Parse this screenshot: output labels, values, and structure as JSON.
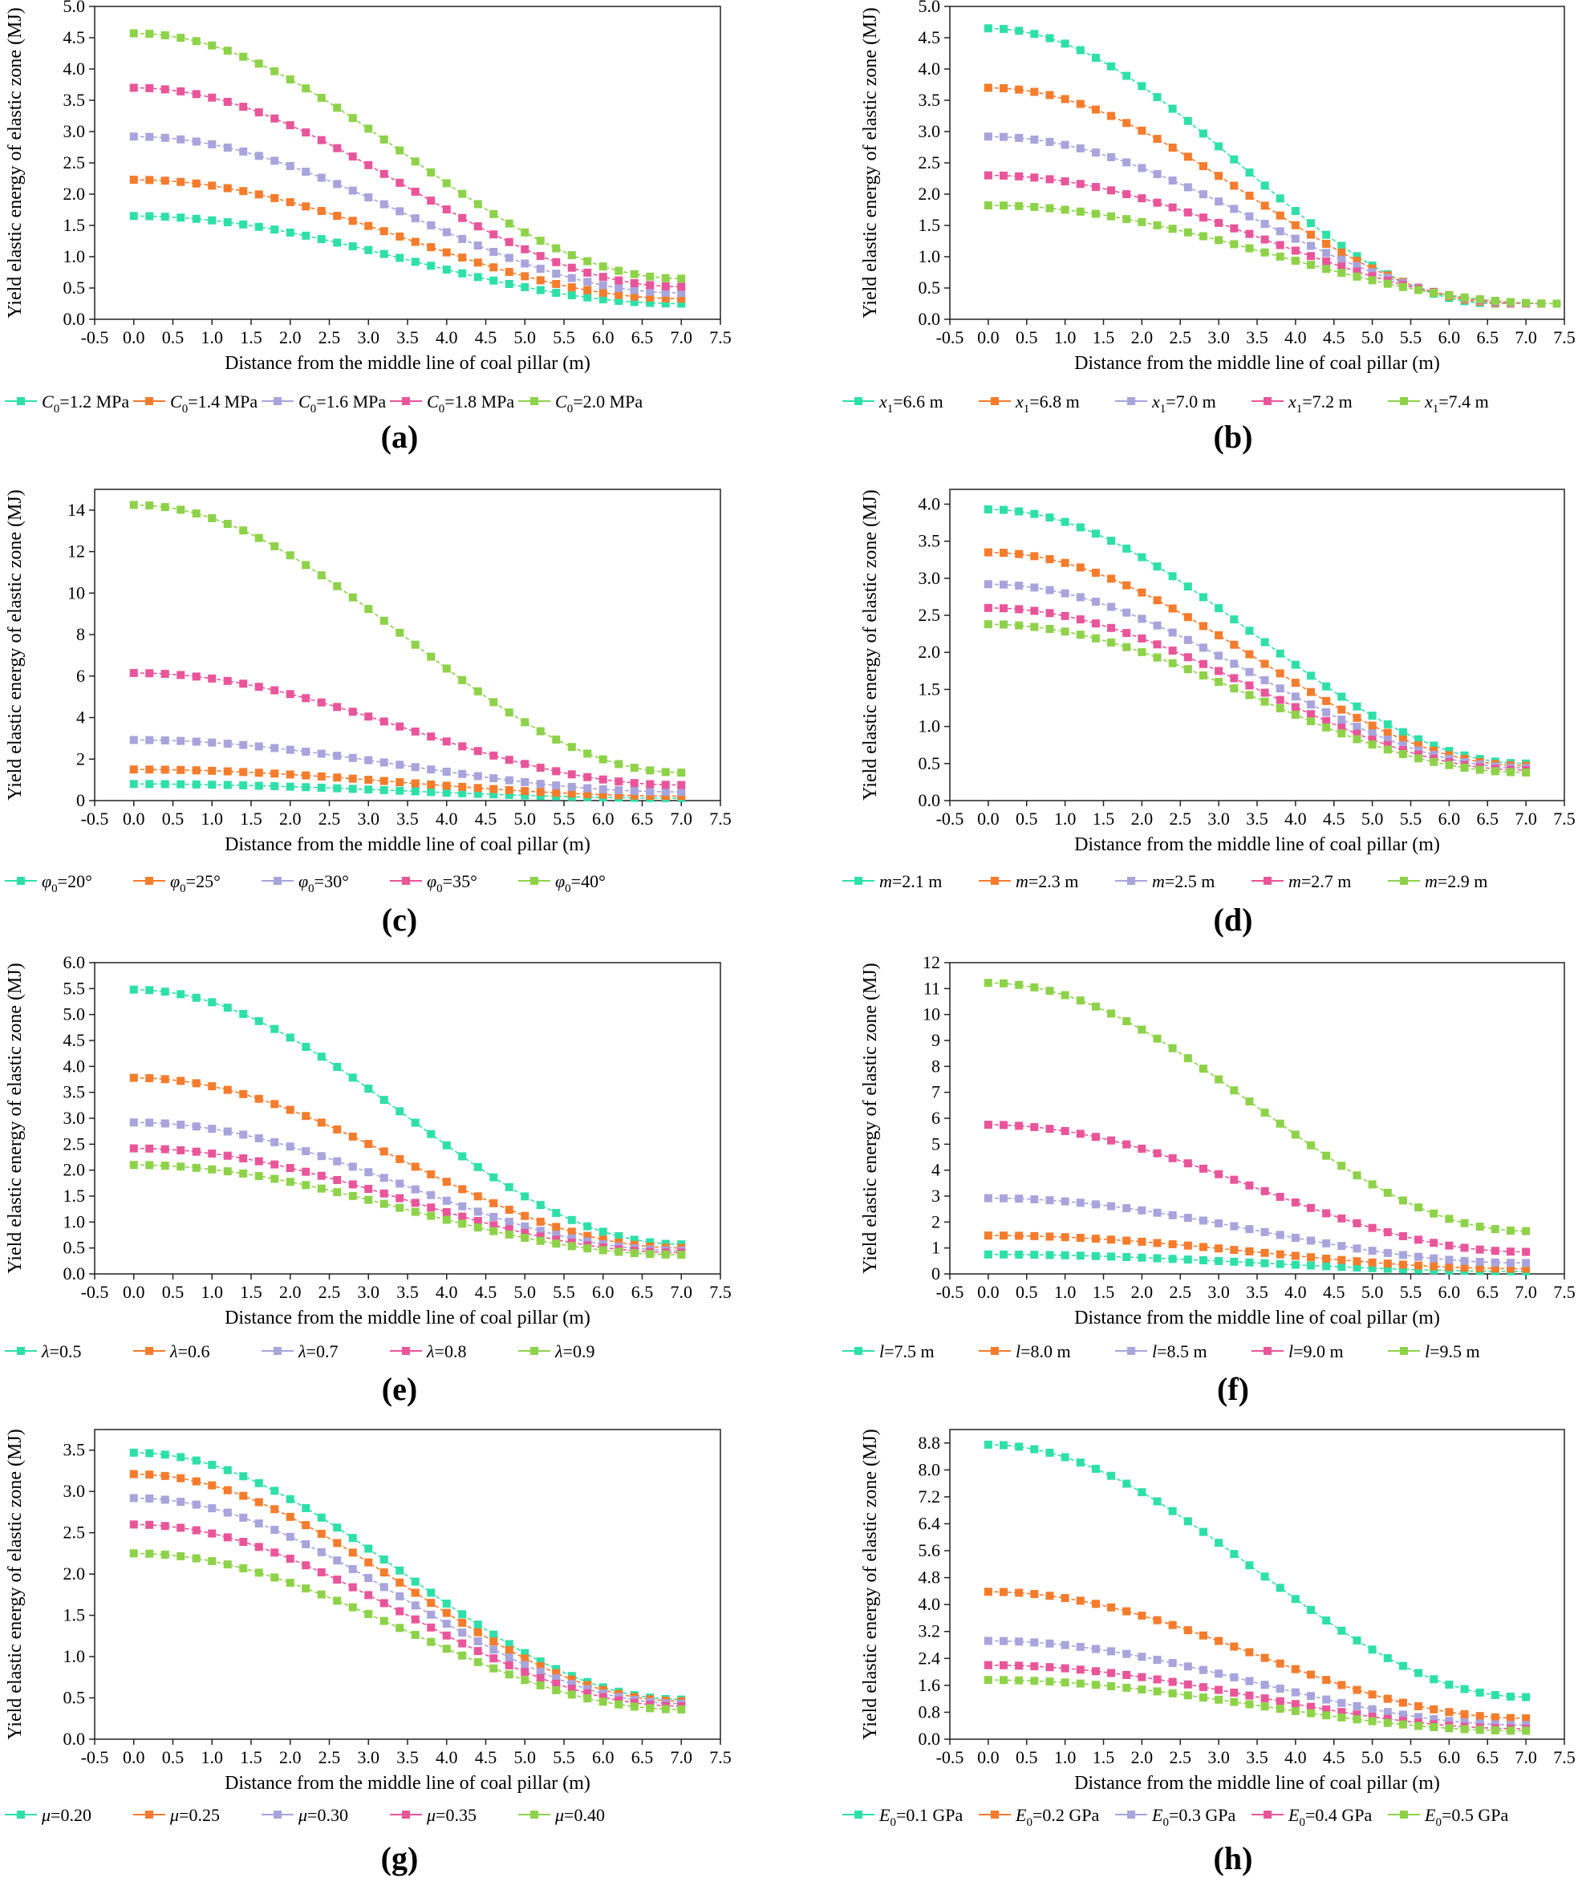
{
  "figure": {
    "colors": [
      "#2ee0a8",
      "#f47c2c",
      "#a8a4dc",
      "#e9559a",
      "#8ed24a"
    ],
    "xlabel": "Distance from the middle line of coal pillar (m)",
    "ylabel": "Yield elastic energy of elastic zone (MJ)",
    "x_ticks": [
      "-0.5",
      "0.0",
      "0.5",
      "1.0",
      "1.5",
      "2.0",
      "2.5",
      "3.0",
      "3.5",
      "4.0",
      "4.5",
      "5.0",
      "5.5",
      "6.0",
      "6.5",
      "7.0",
      "7.5"
    ]
  },
  "chart_data": [
    {
      "panel": "(a)",
      "type": "line",
      "xlim": [
        -0.5,
        7.5
      ],
      "ylim": [
        0,
        5
      ],
      "x_end": 7.0,
      "y_ticks": [
        "0.0",
        "0.5",
        "1.0",
        "1.5",
        "2.0",
        "2.5",
        "3.0",
        "3.5",
        "4.0",
        "4.5",
        "5.0"
      ],
      "xlabel": "Distance from the middle line of coal pillar (m)",
      "ylabel": "Yield elastic energy of elastic zone (MJ)",
      "series": [
        {
          "sym": "C",
          "sub": "0",
          "rest": "=1.2 MPa",
          "y0": 1.65,
          "y_end": 0.25
        },
        {
          "sym": "C",
          "sub": "0",
          "rest": "=1.4 MPa",
          "y0": 2.23,
          "y_end": 0.33
        },
        {
          "sym": "C",
          "sub": "0",
          "rest": "=1.6 MPa",
          "y0": 2.92,
          "y_end": 0.42
        },
        {
          "sym": "C",
          "sub": "0",
          "rest": "=1.8 MPa",
          "y0": 3.7,
          "y_end": 0.52
        },
        {
          "sym": "C",
          "sub": "0",
          "rest": "=2.0 MPa",
          "y0": 4.57,
          "y_end": 0.65
        }
      ]
    },
    {
      "panel": "(b)",
      "type": "line",
      "xlim": [
        -0.5,
        7.5
      ],
      "ylim": [
        0,
        5
      ],
      "x_end": null,
      "y_ticks": [
        "0.0",
        "0.5",
        "1.0",
        "1.5",
        "2.0",
        "2.5",
        "3.0",
        "3.5",
        "4.0",
        "4.5",
        "5.0"
      ],
      "xlabel": "Distance from the middle line of coal pillar (m)",
      "ylabel": "Yield elastic energy of elastic zone (MJ)",
      "series": [
        {
          "sym": "x",
          "sub": "1",
          "rest": "=6.6 m",
          "y0": 4.65,
          "y_end": 0.25
        },
        {
          "sym": "x",
          "sub": "1",
          "rest": "=6.8 m",
          "y0": 3.7,
          "y_end": 0.25
        },
        {
          "sym": "x",
          "sub": "1",
          "rest": "=7.0 m",
          "y0": 2.92,
          "y_end": 0.25
        },
        {
          "sym": "x",
          "sub": "1",
          "rest": "=7.2 m",
          "y0": 2.3,
          "y_end": 0.25
        },
        {
          "sym": "x",
          "sub": "1",
          "rest": "=7.4 m",
          "y0": 1.82,
          "y_end": 0.25
        }
      ]
    },
    {
      "panel": "(c)",
      "type": "line",
      "xlim": [
        -0.5,
        7.5
      ],
      "ylim": [
        0,
        15
      ],
      "x_end": 7.0,
      "y_ticks": [
        "0",
        "2",
        "4",
        "6",
        "8",
        "10",
        "12",
        "14"
      ],
      "xlabel": "Distance from the middle line of coal pillar (m)",
      "ylabel": "Yield elastic energy of elastic zone (MJ)",
      "series": [
        {
          "sym": "φ",
          "sub": "0",
          "rest": "=20°",
          "y0": 0.8,
          "y_end": 0.12
        },
        {
          "sym": "φ",
          "sub": "0",
          "rest": "=25°",
          "y0": 1.5,
          "y_end": 0.22
        },
        {
          "sym": "φ",
          "sub": "0",
          "rest": "=30°",
          "y0": 2.92,
          "y_end": 0.42
        },
        {
          "sym": "φ",
          "sub": "0",
          "rest": "=35°",
          "y0": 6.15,
          "y_end": 0.75
        },
        {
          "sym": "φ",
          "sub": "0",
          "rest": "=40°",
          "y0": 14.25,
          "y_end": 1.35
        }
      ]
    },
    {
      "panel": "(d)",
      "type": "line",
      "xlim": [
        -0.5,
        7.5
      ],
      "ylim": [
        0,
        4.2
      ],
      "x_end": 7.0,
      "y_ticks": [
        "0.0",
        "0.5",
        "1.0",
        "1.5",
        "2.0",
        "2.5",
        "3.0",
        "3.5",
        "4.0"
      ],
      "xlabel": "Distance from the middle line of coal pillar (m)",
      "ylabel": "Yield elastic energy of elastic zone (MJ)",
      "series": [
        {
          "sym": "m",
          "sub": "",
          "rest": "=2.1 m",
          "y0": 3.93,
          "y_end": 0.5
        },
        {
          "sym": "m",
          "sub": "",
          "rest": "=2.3 m",
          "y0": 3.35,
          "y_end": 0.47
        },
        {
          "sym": "m",
          "sub": "",
          "rest": "=2.5 m",
          "y0": 2.92,
          "y_end": 0.44
        },
        {
          "sym": "m",
          "sub": "",
          "rest": "=2.7 m",
          "y0": 2.6,
          "y_end": 0.41
        },
        {
          "sym": "m",
          "sub": "",
          "rest": "=2.9 m",
          "y0": 2.38,
          "y_end": 0.38
        }
      ]
    },
    {
      "panel": "(e)",
      "type": "line",
      "xlim": [
        -0.5,
        7.5
      ],
      "ylim": [
        0,
        6
      ],
      "x_end": 7.0,
      "y_ticks": [
        "0.0",
        "0.5",
        "1.0",
        "1.5",
        "2.0",
        "2.5",
        "3.0",
        "3.5",
        "4.0",
        "4.5",
        "5.0",
        "5.5",
        "6.0"
      ],
      "xlabel": "Distance from the middle line of coal pillar (m)",
      "ylabel": "Yield elastic energy of elastic zone (MJ)",
      "series": [
        {
          "sym": "λ",
          "sub": "",
          "rest": "=0.5",
          "y0": 5.48,
          "y_end": 0.57
        },
        {
          "sym": "λ",
          "sub": "",
          "rest": "=0.6",
          "y0": 3.78,
          "y_end": 0.5
        },
        {
          "sym": "λ",
          "sub": "",
          "rest": "=0.7",
          "y0": 2.92,
          "y_end": 0.45
        },
        {
          "sym": "λ",
          "sub": "",
          "rest": "=0.8",
          "y0": 2.42,
          "y_end": 0.41
        },
        {
          "sym": "λ",
          "sub": "",
          "rest": "=0.9",
          "y0": 2.1,
          "y_end": 0.37
        }
      ]
    },
    {
      "panel": "(f)",
      "type": "line",
      "xlim": [
        -0.5,
        7.5
      ],
      "ylim": [
        0,
        12
      ],
      "x_end": 7.0,
      "y_ticks": [
        "0",
        "1",
        "2",
        "3",
        "4",
        "5",
        "6",
        "7",
        "8",
        "9",
        "10",
        "11",
        "12"
      ],
      "xlabel": "Distance from the middle line of coal pillar (m)",
      "ylabel": "Yield elastic energy of elastic zone (MJ)",
      "series": [
        {
          "sym": "l",
          "sub": "",
          "rest": "=7.5 m",
          "y0": 0.75,
          "y_end": 0.1
        },
        {
          "sym": "l",
          "sub": "",
          "rest": "=8.0 m",
          "y0": 1.48,
          "y_end": 0.2
        },
        {
          "sym": "l",
          "sub": "",
          "rest": "=8.5 m",
          "y0": 2.92,
          "y_end": 0.42
        },
        {
          "sym": "l",
          "sub": "",
          "rest": "=9.0 m",
          "y0": 5.75,
          "y_end": 0.85
        },
        {
          "sym": "l",
          "sub": "",
          "rest": "=9.5 m",
          "y0": 11.22,
          "y_end": 1.65
        }
      ]
    },
    {
      "panel": "(g)",
      "type": "line",
      "xlim": [
        -0.5,
        7.5
      ],
      "ylim": [
        0,
        3.75
      ],
      "x_end": 7.0,
      "y_ticks": [
        "0.0",
        "0.5",
        "1.0",
        "1.5",
        "2.0",
        "2.5",
        "3.0",
        "3.5"
      ],
      "xlabel": "Distance from the middle line of coal pillar (m)",
      "ylabel": "Yield elastic energy of elastic zone (MJ)",
      "series": [
        {
          "sym": "μ",
          "sub": "",
          "rest": "=0.20",
          "y0": 3.47,
          "y_end": 0.48
        },
        {
          "sym": "μ",
          "sub": "",
          "rest": "=0.25",
          "y0": 3.21,
          "y_end": 0.46
        },
        {
          "sym": "μ",
          "sub": "",
          "rest": "=0.30",
          "y0": 2.92,
          "y_end": 0.43
        },
        {
          "sym": "μ",
          "sub": "",
          "rest": "=0.35",
          "y0": 2.6,
          "y_end": 0.4
        },
        {
          "sym": "μ",
          "sub": "",
          "rest": "=0.40",
          "y0": 2.25,
          "y_end": 0.36
        }
      ]
    },
    {
      "panel": "(h)",
      "type": "line",
      "xlim": [
        -0.5,
        7.5
      ],
      "ylim": [
        0,
        9.2
      ],
      "x_end": 7.0,
      "y_ticks": [
        "0.0",
        "0.8",
        "1.6",
        "2.4",
        "3.2",
        "4.0",
        "4.8",
        "5.6",
        "6.4",
        "7.2",
        "8.0",
        "8.8"
      ],
      "xlabel": "Distance from the middle line of coal pillar (m)",
      "ylabel": "Yield elastic energy of elastic zone (MJ)",
      "series": [
        {
          "sym": "E",
          "sub": "0",
          "rest": "=0.1 GPa",
          "y0": 8.75,
          "y_end": 1.25
        },
        {
          "sym": "E",
          "sub": "0",
          "rest": "=0.2 GPa",
          "y0": 4.38,
          "y_end": 0.62
        },
        {
          "sym": "E",
          "sub": "0",
          "rest": "=0.3 GPa",
          "y0": 2.92,
          "y_end": 0.42
        },
        {
          "sym": "E",
          "sub": "0",
          "rest": "=0.4 GPa",
          "y0": 2.2,
          "y_end": 0.31
        },
        {
          "sym": "E",
          "sub": "0",
          "rest": "=0.5 GPa",
          "y0": 1.76,
          "y_end": 0.25
        }
      ]
    }
  ]
}
